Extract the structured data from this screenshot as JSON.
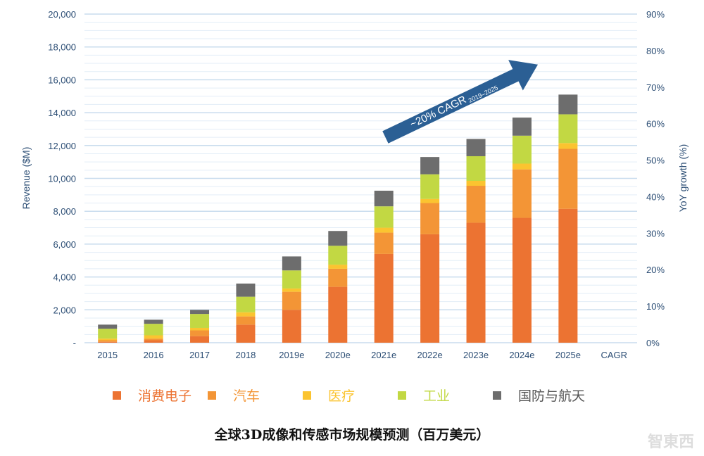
{
  "chart_data": {
    "type": "bar",
    "stacked": true,
    "categories": [
      "2015",
      "2016",
      "2017",
      "2018",
      "2019e",
      "2020e",
      "2021e",
      "2022e",
      "2023e",
      "2024e",
      "2025e",
      "CAGR"
    ],
    "series": [
      {
        "name": "消费电子",
        "color": "#ec7332",
        "values": [
          0.05,
          0.15,
          0.4,
          1.1,
          2.0,
          3.4,
          5.4,
          6.6,
          7.3,
          7.6,
          8.15,
          null
        ]
      },
      {
        "name": "汽车",
        "color": "#f39536",
        "values": [
          0.1,
          0.1,
          0.35,
          0.5,
          1.1,
          1.1,
          1.3,
          1.9,
          2.25,
          2.95,
          3.65,
          null
        ]
      },
      {
        "name": "医疗",
        "color": "#fbc430",
        "values": [
          0.1,
          0.2,
          0.15,
          0.25,
          0.2,
          0.25,
          0.3,
          0.25,
          0.3,
          0.35,
          0.35,
          null
        ]
      },
      {
        "name": "工业",
        "color": "#c2d843",
        "values": [
          0.6,
          0.7,
          0.85,
          0.95,
          1.1,
          1.15,
          1.3,
          1.5,
          1.5,
          1.7,
          1.75,
          null
        ]
      },
      {
        "name": "国防与航天",
        "color": "#6d6d6d",
        "values": [
          0.25,
          0.25,
          0.25,
          0.8,
          0.85,
          0.9,
          0.95,
          1.05,
          1.05,
          1.1,
          1.2,
          null
        ]
      }
    ],
    "value_unit_note": "thousands of $M",
    "ylabel": "Revenue ($M)",
    "y2label": "YoY growth (%)",
    "ylim": [
      0,
      20000
    ],
    "y2lim": [
      0,
      90
    ],
    "yticks": [
      "-",
      "2,000",
      "4,000",
      "6,000",
      "8,000",
      "10,000",
      "12,000",
      "14,000",
      "16,000",
      "18,000",
      "20,000"
    ],
    "y2ticks": [
      "0%",
      "10%",
      "20%",
      "30%",
      "40%",
      "50%",
      "60%",
      "70%",
      "80%",
      "90%"
    ],
    "grid": true,
    "legend_position": "bottom",
    "annotation": {
      "main": "~20% CAGR",
      "sub": "2019–2025"
    },
    "caption": "全球3D成像和传感市场规模预测（百万美元）"
  },
  "watermark": "智东西"
}
